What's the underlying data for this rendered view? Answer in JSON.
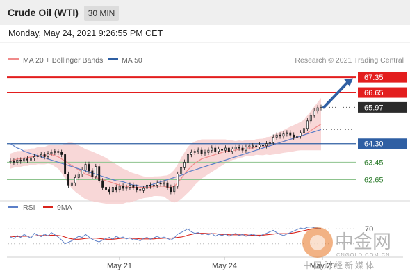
{
  "header": {
    "title": "Crude Oil (WTI)",
    "timeframe": "30 MIN"
  },
  "timestamp": "Monday, May 24, 2021 9:26:55 PM CET",
  "colors": {
    "resistance": "#e31e1e",
    "support_blue": "#2f5fa3",
    "support_green": "#8dc38d",
    "bollinger": "#f6c9c9",
    "ma20": "#f08a8a",
    "ma50": "#5b7fc8",
    "rsi": "#5b7fc8",
    "rsi_ma": "#d9241c",
    "arrow": "#2f5fa3",
    "candle": "#1a1a1a"
  },
  "chart_data": [
    {
      "type": "candlestick",
      "legend": [
        "MA 20 + Bollinger Bands",
        "MA 50"
      ],
      "attribution": "Research © 2021 Trading Central",
      "ylim": [
        61.9,
        67.8
      ],
      "x_ticks": [
        "May 21",
        "May 24",
        "May 25"
      ],
      "levels": [
        {
          "value": 67.35,
          "label": "67.35",
          "style": "resistance"
        },
        {
          "value": 66.65,
          "label": "66.65",
          "style": "resistance"
        },
        {
          "value": 65.97,
          "label": "65.97",
          "style": "last"
        },
        {
          "value": 64.3,
          "label": "64.30",
          "style": "support_blue"
        },
        {
          "value": 63.45,
          "label": "63.45",
          "style": "support_green"
        },
        {
          "value": 62.65,
          "label": "62.65",
          "style": "support_green"
        }
      ],
      "close": [
        63.5,
        63.45,
        63.55,
        63.5,
        63.6,
        63.55,
        63.65,
        63.7,
        63.75,
        63.8,
        63.7,
        63.85,
        63.9,
        63.95,
        63.9,
        63.8,
        62.9,
        62.4,
        62.5,
        62.75,
        62.9,
        63.1,
        63.35,
        63.05,
        62.8,
        63.25,
        62.6,
        62.3,
        62.2,
        62.1,
        62.3,
        62.2,
        62.35,
        62.25,
        62.3,
        62.4,
        62.3,
        62.2,
        62.15,
        62.25,
        62.4,
        62.35,
        62.4,
        62.5,
        62.45,
        62.5,
        62.3,
        62.1,
        62.35,
        62.9,
        63.2,
        63.45,
        63.8,
        63.9,
        63.95,
        64.0,
        63.85,
        63.9,
        64.0,
        64.1,
        63.95,
        64.05,
        64.0,
        64.1,
        63.95,
        64.05,
        64.15,
        64.1,
        64.0,
        64.15,
        64.2,
        64.2,
        64.15,
        64.25,
        64.2,
        64.3,
        64.35,
        64.6,
        64.7,
        64.65,
        64.75,
        64.8,
        64.7,
        64.6,
        64.65,
        64.8,
        65.0,
        65.35,
        65.6,
        65.8,
        65.95,
        65.97
      ],
      "ma20": [
        63.5,
        63.55,
        63.6,
        63.6,
        63.65,
        63.65,
        63.7,
        63.7,
        63.75,
        63.75,
        63.75,
        63.8,
        63.8,
        63.75,
        63.7,
        63.6,
        63.5,
        63.4,
        63.3,
        63.2,
        63.1,
        63.0,
        62.9,
        62.85,
        62.8,
        62.75,
        62.7,
        62.65,
        62.6,
        62.55,
        62.5,
        62.45,
        62.4,
        62.35,
        62.35,
        62.3,
        62.3,
        62.3,
        62.3,
        62.3,
        62.3,
        62.3,
        62.35,
        62.35,
        62.35,
        62.35,
        62.3,
        62.3,
        62.35,
        62.5,
        62.7,
        62.9,
        63.1,
        63.25,
        63.4,
        63.5,
        63.6,
        63.65,
        63.7,
        63.75,
        63.8,
        63.85,
        63.9,
        63.95,
        63.95,
        64.0,
        64.0,
        64.05,
        64.05,
        64.1,
        64.1,
        64.1,
        64.15,
        64.15,
        64.15,
        64.2,
        64.2,
        64.25,
        64.3,
        64.35,
        64.4,
        64.45,
        64.5,
        64.55,
        64.6,
        64.65,
        64.7,
        64.8,
        64.9,
        65.0,
        65.1,
        65.2
      ],
      "ma50": [
        64.3,
        64.2,
        64.1,
        64.05,
        63.95,
        63.9,
        63.85,
        63.8,
        63.75,
        63.7,
        63.65,
        63.6,
        63.55,
        63.5,
        63.45,
        63.4,
        63.35,
        63.3,
        63.25,
        63.2,
        63.15,
        63.1,
        63.05,
        63.0,
        62.95,
        62.9,
        62.85,
        62.8,
        62.75,
        62.7,
        62.65,
        62.6,
        62.58,
        62.55,
        62.5,
        62.45,
        62.4,
        62.4,
        62.35,
        62.35,
        62.35,
        62.4,
        62.45,
        62.5,
        62.55,
        62.6,
        62.65,
        62.7,
        62.75,
        62.8,
        62.85,
        62.9,
        63.0,
        63.05,
        63.1,
        63.15,
        63.2,
        63.25,
        63.3,
        63.35,
        63.4,
        63.45,
        63.5,
        63.55,
        63.6,
        63.65,
        63.7,
        63.75,
        63.8,
        63.85,
        63.9,
        63.95,
        64.0,
        64.05,
        64.1,
        64.15,
        64.2,
        64.25,
        64.3,
        64.35,
        64.4,
        64.45,
        64.5,
        64.55,
        64.6,
        64.65,
        64.7,
        64.75,
        64.8,
        64.85,
        64.9,
        64.95
      ],
      "bb_width": [
        0.35,
        0.35,
        0.36,
        0.36,
        0.37,
        0.37,
        0.38,
        0.38,
        0.39,
        0.4,
        0.4,
        0.42,
        0.45,
        0.5,
        0.55,
        0.65,
        0.8,
        0.95,
        1.05,
        1.1,
        1.12,
        1.14,
        1.15,
        1.15,
        1.14,
        1.12,
        1.1,
        1.08,
        1.05,
        1.0,
        0.95,
        0.9,
        0.85,
        0.8,
        0.75,
        0.7,
        0.65,
        0.6,
        0.55,
        0.5,
        0.48,
        0.46,
        0.45,
        0.45,
        0.46,
        0.48,
        0.55,
        0.65,
        0.75,
        0.85,
        0.95,
        1.0,
        1.05,
        1.05,
        1.0,
        0.95,
        0.9,
        0.85,
        0.8,
        0.75,
        0.7,
        0.65,
        0.6,
        0.55,
        0.5,
        0.45,
        0.42,
        0.4,
        0.38,
        0.37,
        0.36,
        0.36,
        0.36,
        0.37,
        0.38,
        0.4,
        0.42,
        0.45,
        0.48,
        0.5,
        0.52,
        0.55,
        0.58,
        0.6,
        0.62,
        0.65,
        0.7,
        0.8,
        0.9,
        1.0,
        1.1,
        1.2
      ]
    },
    {
      "type": "line",
      "legend": [
        "RSI",
        "9MA"
      ],
      "level_label": "70",
      "series": [
        {
          "name": "RSI",
          "values": [
            48,
            44,
            52,
            47,
            55,
            50,
            45,
            58,
            53,
            49,
            56,
            51,
            60,
            54,
            48,
            40,
            30,
            34,
            38,
            44,
            50,
            47,
            55,
            48,
            42,
            38,
            35,
            40,
            44,
            47,
            42,
            50,
            45,
            48,
            43,
            46,
            40,
            42,
            38,
            44,
            47,
            42,
            46,
            50,
            45,
            48,
            44,
            40,
            46,
            56,
            60,
            65,
            70,
            62,
            58,
            60,
            55,
            57,
            54,
            58,
            50,
            55,
            52,
            56,
            50,
            54,
            58,
            52,
            55,
            50,
            53,
            56,
            52,
            50,
            55,
            58,
            62,
            66,
            60,
            55,
            52,
            56,
            60,
            64,
            68,
            72,
            70,
            74,
            75,
            73,
            72,
            70
          ]
        },
        {
          "name": "9MA",
          "values": [
            50,
            49,
            49,
            50,
            50,
            50,
            51,
            51,
            52,
            52,
            52,
            52,
            53,
            53,
            52,
            51,
            48,
            45,
            43,
            42,
            42,
            43,
            44,
            45,
            45,
            45,
            44,
            43,
            42,
            42,
            42,
            43,
            44,
            45,
            45,
            45,
            44,
            44,
            43,
            43,
            43,
            43,
            43,
            44,
            44,
            45,
            45,
            45,
            46,
            47,
            48,
            50,
            53,
            55,
            57,
            58,
            58,
            58,
            57,
            57,
            57,
            56,
            55,
            55,
            54,
            54,
            54,
            54,
            54,
            54,
            53,
            53,
            53,
            53,
            53,
            54,
            55,
            56,
            57,
            57,
            57,
            57,
            58,
            59,
            61,
            63,
            65,
            67,
            69,
            70,
            71,
            71
          ]
        }
      ]
    }
  ],
  "watermark": {
    "brand_cn": "中金网",
    "url": "CNGOLD.COM.CN",
    "tagline": "中国财经新媒体"
  }
}
